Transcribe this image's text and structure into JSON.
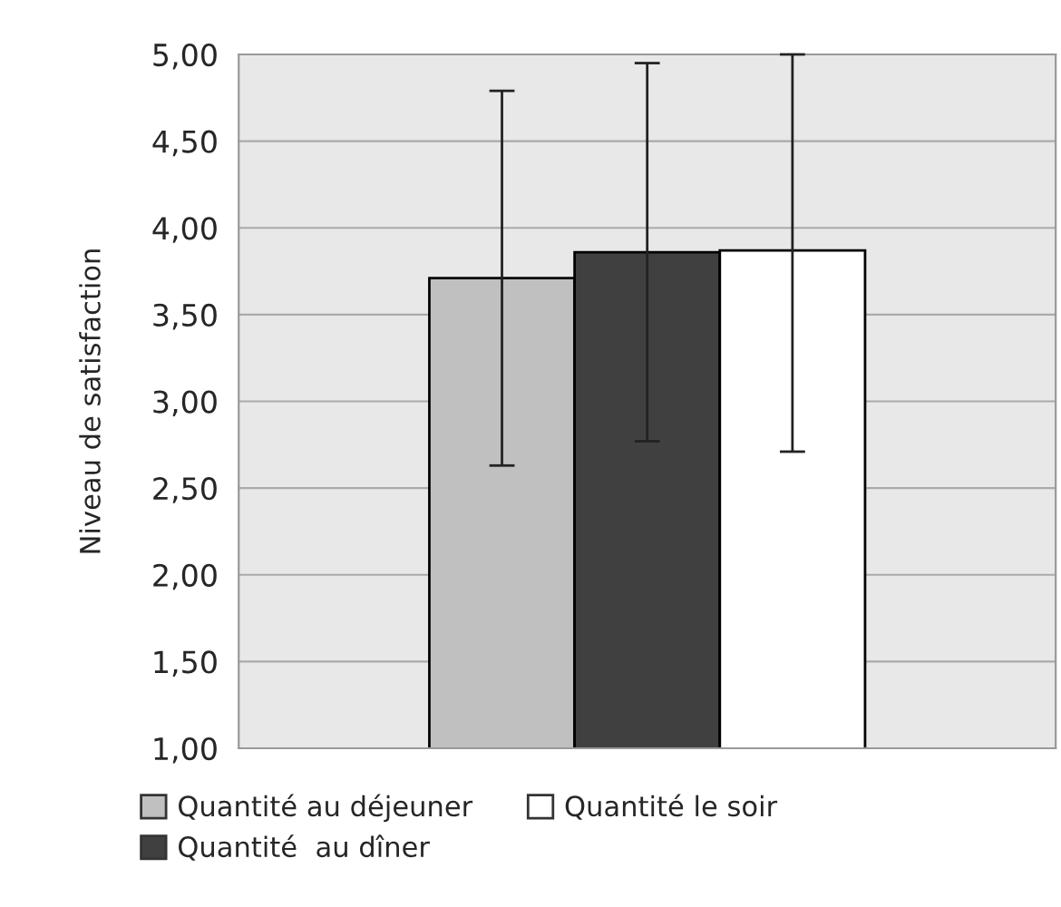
{
  "chart_data": {
    "type": "bar",
    "ylabel": "Niveau de satisfaction",
    "categories": [
      null
    ],
    "series": [
      {
        "name": "Quantité au déjeuner",
        "color": "#c0c0c0",
        "values": [
          3.71
        ],
        "errors": [
          [
            2.63,
            4.79
          ]
        ]
      },
      {
        "name": "Quantité  au dîner",
        "color": "#404040",
        "values": [
          3.86
        ],
        "errors": [
          [
            2.77,
            4.95
          ]
        ]
      },
      {
        "name": "Quantité le soir",
        "color": "#ffffff",
        "values": [
          3.87
        ],
        "errors": [
          [
            2.71,
            5.0
          ]
        ]
      }
    ],
    "ylim": [
      1,
      5
    ],
    "yticks": [
      {
        "value": 1,
        "label": "1,00"
      },
      {
        "value": 1.5,
        "label": "1,50"
      },
      {
        "value": 2,
        "label": "2,00"
      },
      {
        "value": 2.5,
        "label": "2,50"
      },
      {
        "value": 3,
        "label": "3,00"
      },
      {
        "value": 3.5,
        "label": "3,50"
      },
      {
        "value": 4,
        "label": "4,00"
      },
      {
        "value": 4.5,
        "label": "4,50"
      },
      {
        "value": 5,
        "label": "5,00"
      }
    ],
    "grid": "y",
    "legend": "bottom"
  }
}
